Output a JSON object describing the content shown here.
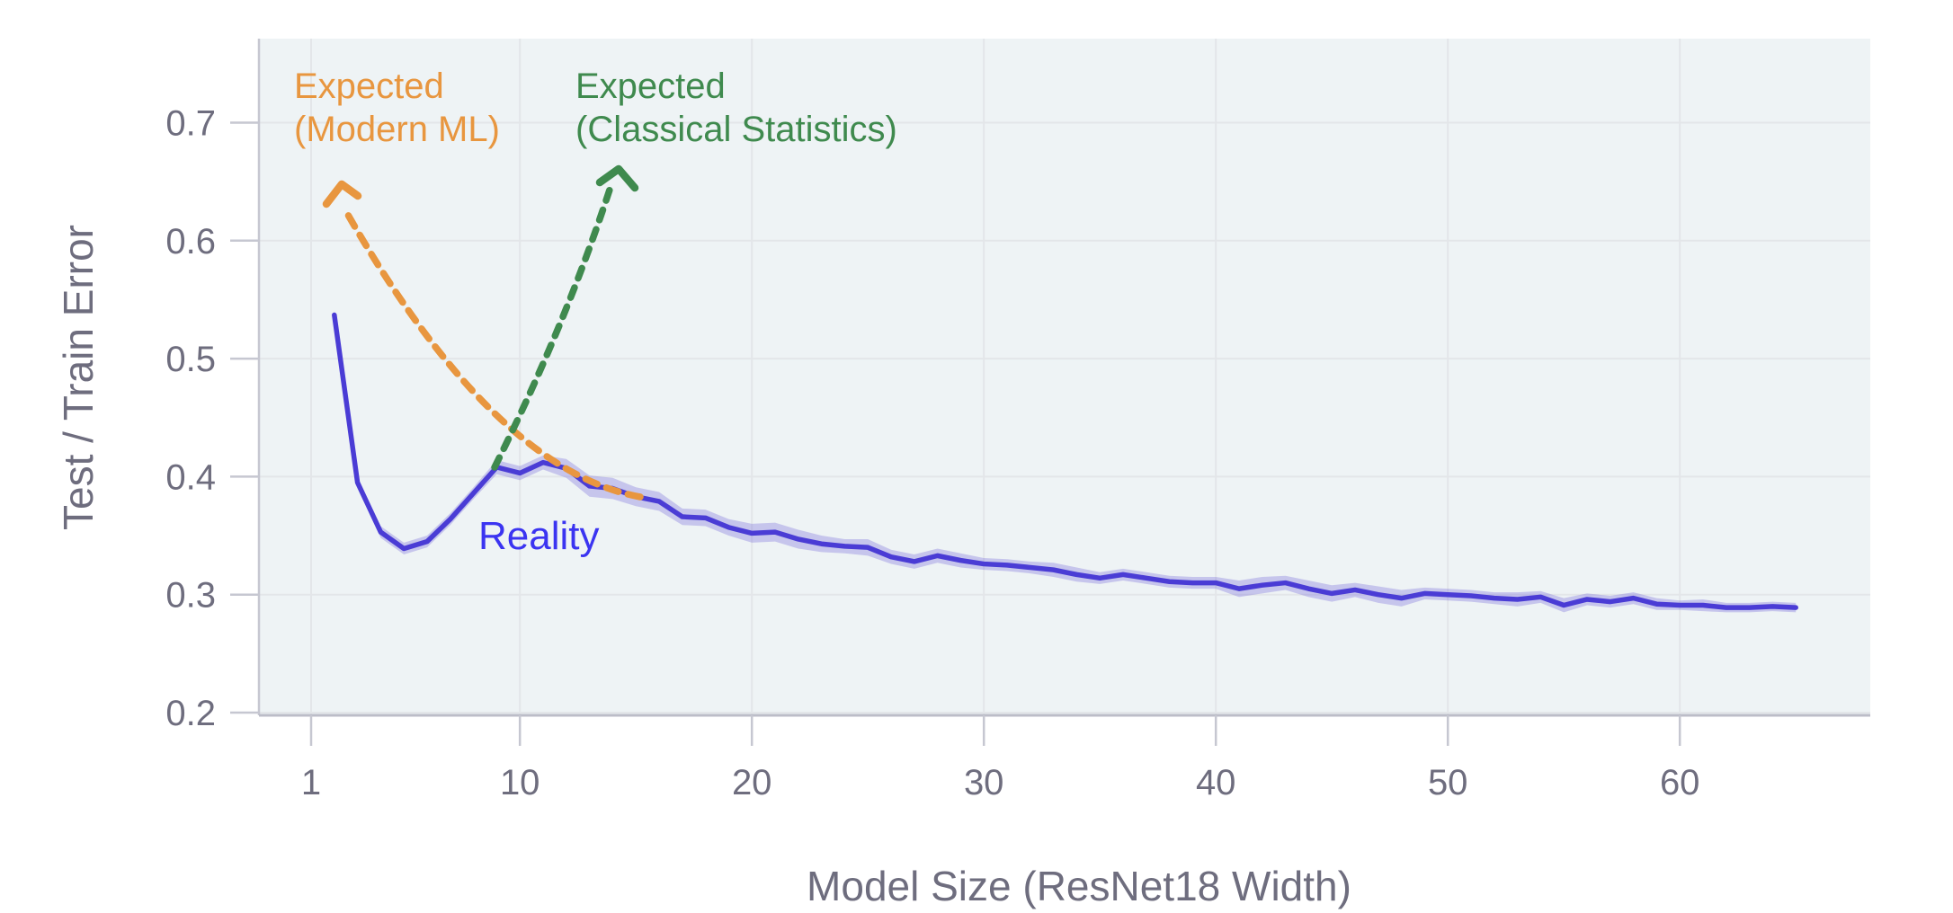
{
  "figure": {
    "x_axis": {
      "title": "Model Size (ResNet18 Width)",
      "tick_labels": [
        "1",
        "10",
        "20",
        "30",
        "40",
        "50",
        "60"
      ],
      "ticks": [
        1,
        10,
        20,
        30,
        40,
        50,
        60
      ]
    },
    "y_axis": {
      "title": "Test / Train Error",
      "tick_labels": [
        "0.2",
        "0.3",
        "0.4",
        "0.5",
        "0.6",
        "0.7"
      ],
      "ticks": [
        0.2,
        0.3,
        0.4,
        0.5,
        0.6,
        0.7
      ]
    },
    "annotations": {
      "modern_ml": {
        "line1": "Expected",
        "line2": "(Modern ML)",
        "color": "#e8963f"
      },
      "classical": {
        "line1": "Expected",
        "line2": "(Classical Statistics)",
        "color": "#3f8a4e"
      },
      "reality": {
        "label": "Reality",
        "color": "#3b34f1"
      }
    },
    "colors": {
      "line": "#4a3cd5",
      "band": "rgba(106,92,216,0.30)",
      "panel": "#eef3f5",
      "grid": "#e3e6e9",
      "axis_text": "#6e6d7e",
      "axis_line": "#bcbdc8",
      "tick_line": "#c6c7d1",
      "orange": "#e8963f",
      "green": "#3f8a4e"
    }
  },
  "chart_data": {
    "type": "line",
    "title": "",
    "xlabel": "Model Size (ResNet18 Width)",
    "ylabel": "Test / Train Error",
    "xlim": [
      -1.25,
      68.2
    ],
    "ylim": [
      0.2,
      0.771
    ],
    "x_ticks": [
      1,
      10,
      20,
      30,
      40,
      50,
      60
    ],
    "y_ticks": [
      0.2,
      0.3,
      0.4,
      0.5,
      0.6,
      0.7
    ],
    "grid": true,
    "legend_position": "none",
    "series": [
      {
        "name": "Reality",
        "style": "solid line with shaded error band",
        "x": [
          1,
          2,
          3,
          4,
          5,
          6,
          7,
          8,
          9,
          10,
          11,
          12,
          13,
          14,
          15,
          16,
          17,
          18,
          19,
          20,
          21,
          22,
          23,
          24,
          25,
          26,
          27,
          28,
          29,
          30,
          31,
          32,
          33,
          34,
          35,
          36,
          37,
          38,
          39,
          40,
          41,
          42,
          43,
          44,
          45,
          46,
          47,
          48,
          49,
          50,
          51,
          52,
          53,
          54,
          55,
          56,
          57,
          58,
          59,
          60,
          61,
          62,
          63,
          64
        ],
        "values": [
          0.537,
          0.395,
          0.353,
          0.339,
          0.345,
          0.364,
          0.386,
          0.408,
          0.403,
          0.412,
          0.407,
          0.392,
          0.39,
          0.383,
          0.379,
          0.366,
          0.365,
          0.357,
          0.352,
          0.353,
          0.347,
          0.343,
          0.341,
          0.34,
          0.332,
          0.328,
          0.333,
          0.329,
          0.326,
          0.325,
          0.323,
          0.321,
          0.317,
          0.314,
          0.317,
          0.314,
          0.311,
          0.31,
          0.31,
          0.305,
          0.308,
          0.31,
          0.305,
          0.301,
          0.304,
          0.3,
          0.297,
          0.301,
          0.3,
          0.299,
          0.297,
          0.296,
          0.298,
          0.291,
          0.296,
          0.294,
          0.297,
          0.292,
          0.291,
          0.291,
          0.289,
          0.289,
          0.29,
          0.289
        ],
        "band": [
          0.003,
          0.004,
          0.005,
          0.005,
          0.005,
          0.005,
          0.005,
          0.006,
          0.006,
          0.006,
          0.008,
          0.009,
          0.009,
          0.008,
          0.008,
          0.007,
          0.007,
          0.007,
          0.008,
          0.008,
          0.008,
          0.007,
          0.006,
          0.007,
          0.006,
          0.006,
          0.006,
          0.006,
          0.005,
          0.005,
          0.005,
          0.006,
          0.006,
          0.005,
          0.005,
          0.005,
          0.005,
          0.005,
          0.005,
          0.007,
          0.007,
          0.006,
          0.007,
          0.007,
          0.006,
          0.007,
          0.007,
          0.005,
          0.005,
          0.005,
          0.005,
          0.006,
          0.005,
          0.006,
          0.005,
          0.005,
          0.005,
          0.005,
          0.004,
          0.005,
          0.004,
          0.004,
          0.004,
          0.004
        ]
      }
    ],
    "annotations": [
      {
        "text": "Expected (Modern ML)",
        "color": "#e8963f",
        "arrow": "dashed curve from ~(width 15, error 0.38) up-left to ~(width 2.3, error 0.65)"
      },
      {
        "text": "Expected (Classical Statistics)",
        "color": "#3f8a4e",
        "arrow": "dashed curve from ~(width 9, error 0.41) up to ~(width 14, error 0.65)"
      },
      {
        "text": "Reality",
        "color": "#3b34f1",
        "target": "solid measured curve: dips to 0.34 at width 4, peaks 0.41 at width 10, declines to 0.29 at width 64"
      }
    ]
  }
}
